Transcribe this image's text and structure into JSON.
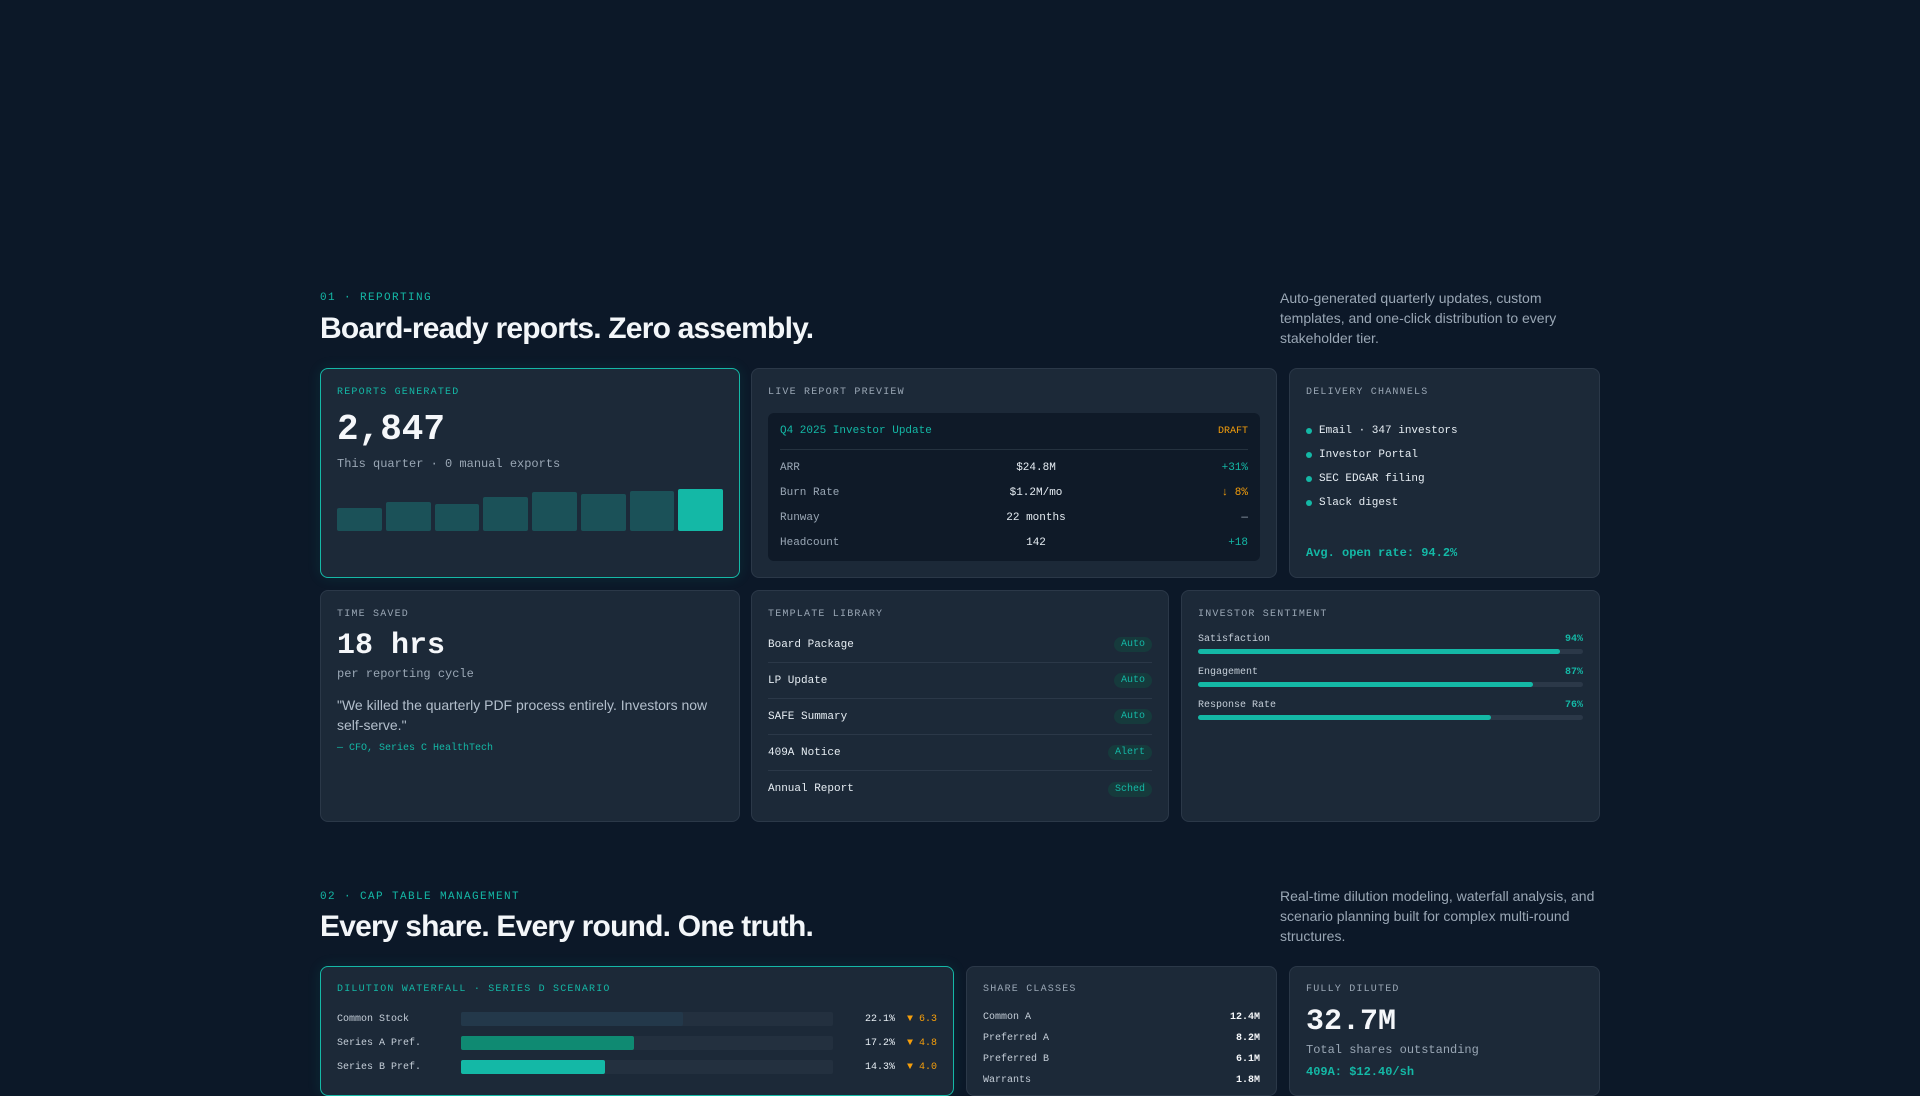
{
  "section1": {
    "eyebrow": "01 · REPORTING",
    "title": "Board-ready reports. Zero assembly.",
    "description": "Auto-generated quarterly updates, custom templates, and one-click distribution to every stakeholder tier."
  },
  "reports_generated": {
    "label": "REPORTS GENERATED",
    "value": "2,847",
    "subtitle": "This quarter · 0 manual exports",
    "bars": [
      0.55,
      0.7,
      0.65,
      0.8,
      0.92,
      0.87,
      0.95,
      1.0
    ]
  },
  "live_preview": {
    "label": "LIVE REPORT PREVIEW",
    "doc_title": "Q4 2025 Investor Update",
    "status": "DRAFT",
    "rows": [
      {
        "metric": "ARR",
        "value": "$24.8M",
        "delta": "+31%",
        "tone": "teal"
      },
      {
        "metric": "Burn Rate",
        "value": "$1.2M/mo",
        "delta": "↓ 8%",
        "tone": "orange"
      },
      {
        "metric": "Runway",
        "value": "22 months",
        "delta": "—",
        "tone": "muted"
      },
      {
        "metric": "Headcount",
        "value": "142",
        "delta": "+18",
        "tone": "teal"
      }
    ]
  },
  "delivery": {
    "label": "DELIVERY CHANNELS",
    "channels": [
      "Email · 347 investors",
      "Investor Portal",
      "SEC EDGAR filing",
      "Slack digest"
    ],
    "footer": "Avg. open rate: 94.2%"
  },
  "time_saved": {
    "label": "TIME SAVED",
    "value": "18 hrs",
    "subtitle": "per reporting cycle",
    "quote": "\"We killed the quarterly PDF process entirely. Investors now self-serve.\"",
    "attribution": "— CFO, Series C HealthTech"
  },
  "templates": {
    "label": "TEMPLATE LIBRARY",
    "items": [
      {
        "name": "Board Package",
        "tag": "Auto"
      },
      {
        "name": "LP Update",
        "tag": "Auto"
      },
      {
        "name": "SAFE Summary",
        "tag": "Auto"
      },
      {
        "name": "409A Notice",
        "tag": "Alert"
      },
      {
        "name": "Annual Report",
        "tag": "Sched"
      }
    ]
  },
  "sentiment": {
    "label": "INVESTOR SENTIMENT",
    "metrics": [
      {
        "name": "Satisfaction",
        "pct": "94%",
        "value": 0.94
      },
      {
        "name": "Engagement",
        "pct": "87%",
        "value": 0.87
      },
      {
        "name": "Response Rate",
        "pct": "76%",
        "value": 0.76
      }
    ]
  },
  "section2": {
    "eyebrow": "02 · CAP TABLE MANAGEMENT",
    "title": "Every share. Every round. One truth.",
    "description": "Real-time dilution modeling, waterfall analysis, and scenario planning built for complex multi-round structures."
  },
  "dilution": {
    "label": "DILUTION WATERFALL · SERIES D SCENARIO",
    "rows": [
      {
        "name": "Common Stock",
        "pct": "22.1%",
        "change": "▼ 6.3",
        "value": 0.221,
        "color": "#23384a"
      },
      {
        "name": "Series A Pref.",
        "pct": "17.2%",
        "change": "▼ 4.8",
        "value": 0.172,
        "color": "#0f8a72"
      },
      {
        "name": "Series B Pref.",
        "pct": "14.3%",
        "change": "▼ 4.0",
        "value": 0.143,
        "color": "#14b8a6"
      }
    ]
  },
  "share_classes": {
    "label": "SHARE CLASSES",
    "rows": [
      {
        "name": "Common A",
        "value": "12.4M"
      },
      {
        "name": "Preferred A",
        "value": "8.2M"
      },
      {
        "name": "Preferred B",
        "value": "6.1M"
      },
      {
        "name": "Warrants",
        "value": "1.8M"
      }
    ]
  },
  "fully_diluted": {
    "label": "FULLY DILUTED",
    "value": "32.7M",
    "subtitle": "Total shares outstanding",
    "footer": "409A: $12.40/sh"
  },
  "colors": {
    "background": "#0c1828",
    "card": "#1c2938",
    "accent": "#14b8a6",
    "warning": "#f59e0b"
  }
}
